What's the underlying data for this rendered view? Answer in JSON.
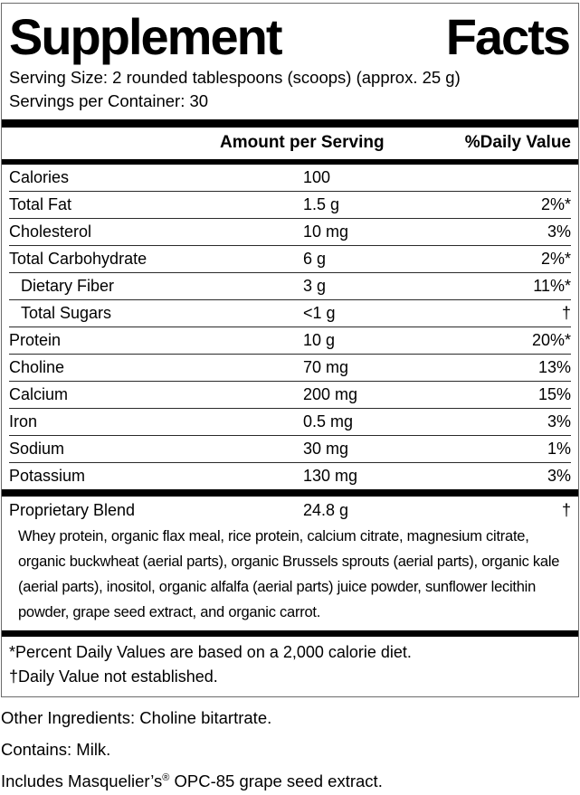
{
  "title": {
    "left": "Supplement",
    "right": "Facts"
  },
  "serving": {
    "size_line": "Serving Size: 2 rounded tablespoons (scoops) (approx. 25 g)",
    "per_container_line": "Servings per Container: 30"
  },
  "table": {
    "headers": {
      "amount": "Amount per Serving",
      "daily_value": "%Daily Value"
    },
    "rows": [
      {
        "name": "Calories",
        "amount": "100",
        "dv": "",
        "indent": false
      },
      {
        "name": "Total Fat",
        "amount": "1.5 g",
        "dv": "2%*",
        "indent": false
      },
      {
        "name": "Cholesterol",
        "amount": "10 mg",
        "dv": "3%",
        "indent": false
      },
      {
        "name": "Total Carbohydrate",
        "amount": "6 g",
        "dv": "2%*",
        "indent": false
      },
      {
        "name": "Dietary Fiber",
        "amount": "3 g",
        "dv": "11%*",
        "indent": true
      },
      {
        "name": "Total Sugars",
        "amount": "<1 g",
        "dv": "†",
        "indent": true
      },
      {
        "name": "Protein",
        "amount": "10 g",
        "dv": "20%*",
        "indent": false
      },
      {
        "name": "Choline",
        "amount": "70 mg",
        "dv": "13%",
        "indent": false
      },
      {
        "name": "Calcium",
        "amount": "200 mg",
        "dv": "15%",
        "indent": false
      },
      {
        "name": "Iron",
        "amount": "0.5 mg",
        "dv": "3%",
        "indent": false
      },
      {
        "name": "Sodium",
        "amount": "30 mg",
        "dv": "1%",
        "indent": false
      },
      {
        "name": "Potassium",
        "amount": "130 mg",
        "dv": "3%",
        "indent": false
      }
    ]
  },
  "proprietary": {
    "name": "Proprietary Blend",
    "amount": "24.8 g",
    "dv": "†",
    "description": "Whey protein, organic flax meal, rice protein, calcium citrate, magnesium citrate, organic buckwheat (aerial parts), organic Brussels sprouts (aerial parts), organic kale (aerial parts), inositol, organic alfalfa (aerial parts) juice powder, sunflower lecithin powder, grape seed extract, and organic carrot."
  },
  "footnotes": [
    "*Percent Daily Values are based on a 2,000 calorie diet.",
    "†Daily Value not established."
  ],
  "bottom": {
    "other_ingredients": "Other Ingredients: Choline bitartrate.",
    "contains": "Contains: Milk.",
    "includes_pre": "Includes Masquelier’s",
    "includes_sym": "®",
    "includes_post": " OPC-85 grape seed extract."
  },
  "colors": {
    "text": "#000000",
    "bar": "#000000",
    "box_border": "#6b6b6b",
    "background": "#ffffff"
  }
}
